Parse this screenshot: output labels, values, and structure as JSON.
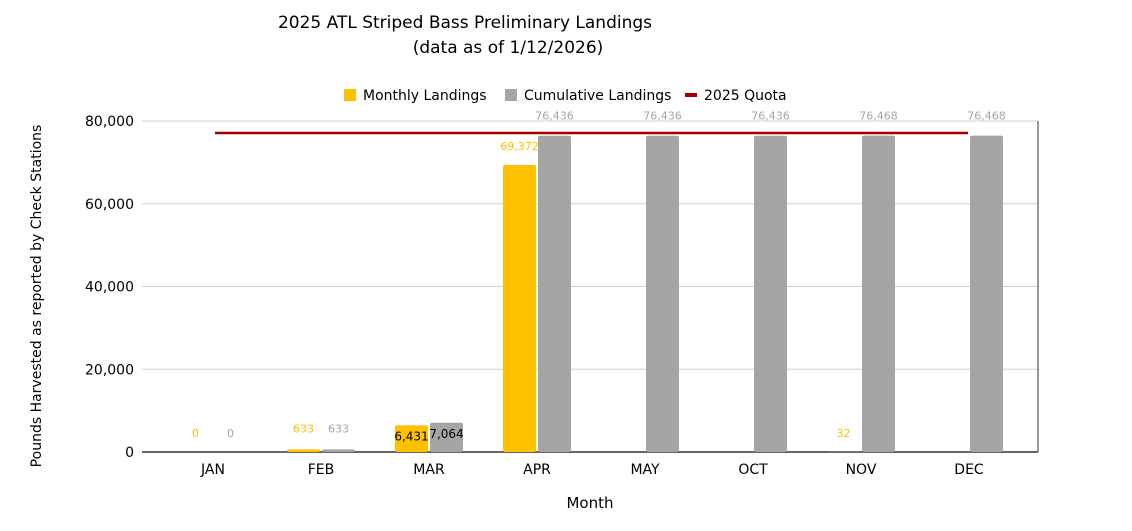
{
  "chart_data": {
    "type": "bar",
    "title": "2025 ATL Striped Bass Preliminary Landings",
    "subtitle": "(data as of  1/12/2026)",
    "xlabel": "Month",
    "ylabel": "Pounds Harvested as reported by Check Stations",
    "ylim": [
      0,
      80000
    ],
    "yticks": [
      0,
      20000,
      40000,
      60000,
      80000
    ],
    "ytick_labels": [
      "0",
      "20,000",
      "40,000",
      "60,000",
      "80,000"
    ],
    "grid": true,
    "legend_position": "top",
    "categories": [
      "JAN",
      "FEB",
      "MAR",
      "APR",
      "MAY",
      "OCT",
      "NOV",
      "DEC"
    ],
    "series": [
      {
        "name": "Monthly Landings",
        "type": "bar",
        "color": "#FFC000",
        "values": [
          0,
          633,
          6431,
          69372,
          null,
          null,
          32,
          null
        ],
        "labels": [
          "0",
          "633",
          "6,431",
          "69,372",
          "",
          "",
          "32",
          ""
        ]
      },
      {
        "name": "Cumulative Landings",
        "type": "bar",
        "color": "#A5A5A5",
        "values": [
          0,
          633,
          7064,
          76436,
          76436,
          76436,
          76468,
          76468
        ],
        "labels": [
          "0",
          "633",
          "7,064",
          "76,436",
          "76,436",
          "76,436",
          "76,468",
          "76,468"
        ]
      },
      {
        "name": "2025 Quota",
        "type": "line",
        "color": "#A50000",
        "value": 77100
      }
    ]
  }
}
